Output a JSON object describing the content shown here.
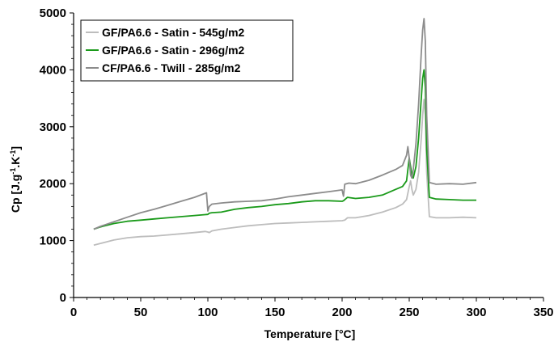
{
  "chart_data": {
    "type": "line",
    "title": "",
    "xlabel": "Temperature [°C]",
    "ylabel_parts": [
      "Cp [J.g",
      "-1",
      ".K",
      "-1",
      "]"
    ],
    "xlim": [
      0,
      350
    ],
    "ylim": [
      0,
      5000
    ],
    "x_ticks": [
      0,
      50,
      100,
      150,
      200,
      250,
      300,
      350
    ],
    "y_ticks": [
      0,
      1000,
      2000,
      3000,
      4000,
      5000
    ],
    "grid": false,
    "legend_position": "top-left",
    "series": [
      {
        "name": "GF/PA6.6 - Satin - 545g/m2",
        "color": "#bdbdbd",
        "x": [
          15,
          20,
          30,
          40,
          50,
          60,
          70,
          80,
          90,
          98,
          100,
          101,
          103,
          110,
          120,
          130,
          140,
          150,
          160,
          170,
          180,
          190,
          200,
          202,
          204,
          210,
          220,
          230,
          240,
          245,
          248,
          250,
          251,
          252,
          253,
          255,
          257,
          259,
          260,
          261,
          262,
          263,
          265,
          270,
          280,
          290,
          300
        ],
        "y": [
          920,
          950,
          1010,
          1050,
          1070,
          1080,
          1100,
          1120,
          1140,
          1160,
          1150,
          1140,
          1170,
          1200,
          1230,
          1260,
          1280,
          1300,
          1310,
          1320,
          1330,
          1340,
          1350,
          1360,
          1400,
          1400,
          1440,
          1500,
          1580,
          1640,
          1720,
          1950,
          2050,
          1900,
          1800,
          1900,
          2200,
          2800,
          3200,
          3480,
          3200,
          2200,
          1420,
          1400,
          1400,
          1410,
          1400
        ]
      },
      {
        "name": "GF/PA6.6 - Satin - 296g/m2",
        "color": "#1a9a1a",
        "x": [
          15,
          20,
          30,
          40,
          50,
          60,
          70,
          80,
          90,
          100,
          101,
          103,
          110,
          120,
          130,
          140,
          150,
          160,
          170,
          180,
          190,
          200,
          201,
          202,
          204,
          210,
          220,
          230,
          240,
          245,
          248,
          250,
          251,
          252,
          253,
          255,
          257,
          259,
          260,
          261,
          262,
          263,
          265,
          270,
          280,
          290,
          300
        ],
        "y": [
          1200,
          1240,
          1300,
          1340,
          1360,
          1380,
          1400,
          1420,
          1440,
          1460,
          1480,
          1490,
          1500,
          1550,
          1580,
          1600,
          1630,
          1650,
          1680,
          1700,
          1700,
          1690,
          1700,
          1720,
          1760,
          1740,
          1760,
          1800,
          1900,
          1950,
          2050,
          2450,
          2300,
          2150,
          2100,
          2300,
          2800,
          3500,
          3850,
          4000,
          3700,
          2600,
          1760,
          1730,
          1720,
          1710,
          1710
        ]
      },
      {
        "name": "CF/PA6.6 - Twill - 285g/m2",
        "color": "#8c8c8c",
        "x": [
          15,
          20,
          30,
          40,
          50,
          60,
          70,
          80,
          90,
          99,
          100,
          101,
          103,
          110,
          120,
          130,
          140,
          150,
          160,
          170,
          180,
          190,
          200,
          201,
          202,
          205,
          210,
          220,
          230,
          240,
          245,
          248,
          249,
          250,
          251,
          252,
          253,
          255,
          257,
          259,
          260,
          261,
          262,
          263,
          265,
          270,
          280,
          290,
          300
        ],
        "y": [
          1200,
          1250,
          1330,
          1410,
          1490,
          1550,
          1620,
          1690,
          1760,
          1840,
          1520,
          1600,
          1640,
          1660,
          1680,
          1690,
          1700,
          1730,
          1770,
          1800,
          1830,
          1860,
          1890,
          1780,
          1990,
          2010,
          2000,
          2060,
          2150,
          2250,
          2320,
          2500,
          2650,
          2450,
          2150,
          2100,
          2250,
          2700,
          3400,
          4300,
          4700,
          4900,
          4500,
          3200,
          2020,
          1990,
          2000,
          1990,
          2020
        ]
      }
    ]
  }
}
